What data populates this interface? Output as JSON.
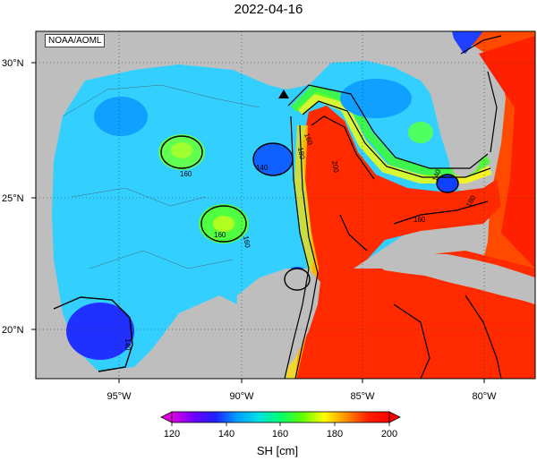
{
  "title": "2022-04-16",
  "credit": "NOAA/AOML",
  "lat_labels": [
    "30°N",
    "25°N",
    "20°N"
  ],
  "lon_labels": [
    "95°W",
    "90°W",
    "85°W",
    "80°W"
  ],
  "colorbar": {
    "label": "SH [cm]",
    "ticks": [
      "120",
      "140",
      "160",
      "180",
      "200"
    ],
    "stops": [
      "#e000e0",
      "#7000ff",
      "#2020ff",
      "#00a0ff",
      "#00e0e0",
      "#00ff70",
      "#60ff00",
      "#ffff00",
      "#ff9000",
      "#ff2000",
      "#ff0000"
    ]
  },
  "contour_labels": [
    {
      "id": "c160-west",
      "text": "160"
    },
    {
      "id": "c140-center",
      "text": "140"
    },
    {
      "id": "c160-loop-a",
      "text": "160"
    },
    {
      "id": "c180-loop",
      "text": "180"
    },
    {
      "id": "c200-loop",
      "text": "200"
    },
    {
      "id": "c160-south",
      "text": "160"
    },
    {
      "id": "c160-eddy",
      "text": "160"
    },
    {
      "id": "c140-sw",
      "text": "140"
    },
    {
      "id": "c160-strait",
      "text": "160"
    },
    {
      "id": "c180-strait",
      "text": "180"
    },
    {
      "id": "c140-florida",
      "text": "140"
    }
  ],
  "colors": {
    "land": "#bebebe",
    "gulf_base": "#33d0ff",
    "loop_current": "#ff2a00"
  }
}
